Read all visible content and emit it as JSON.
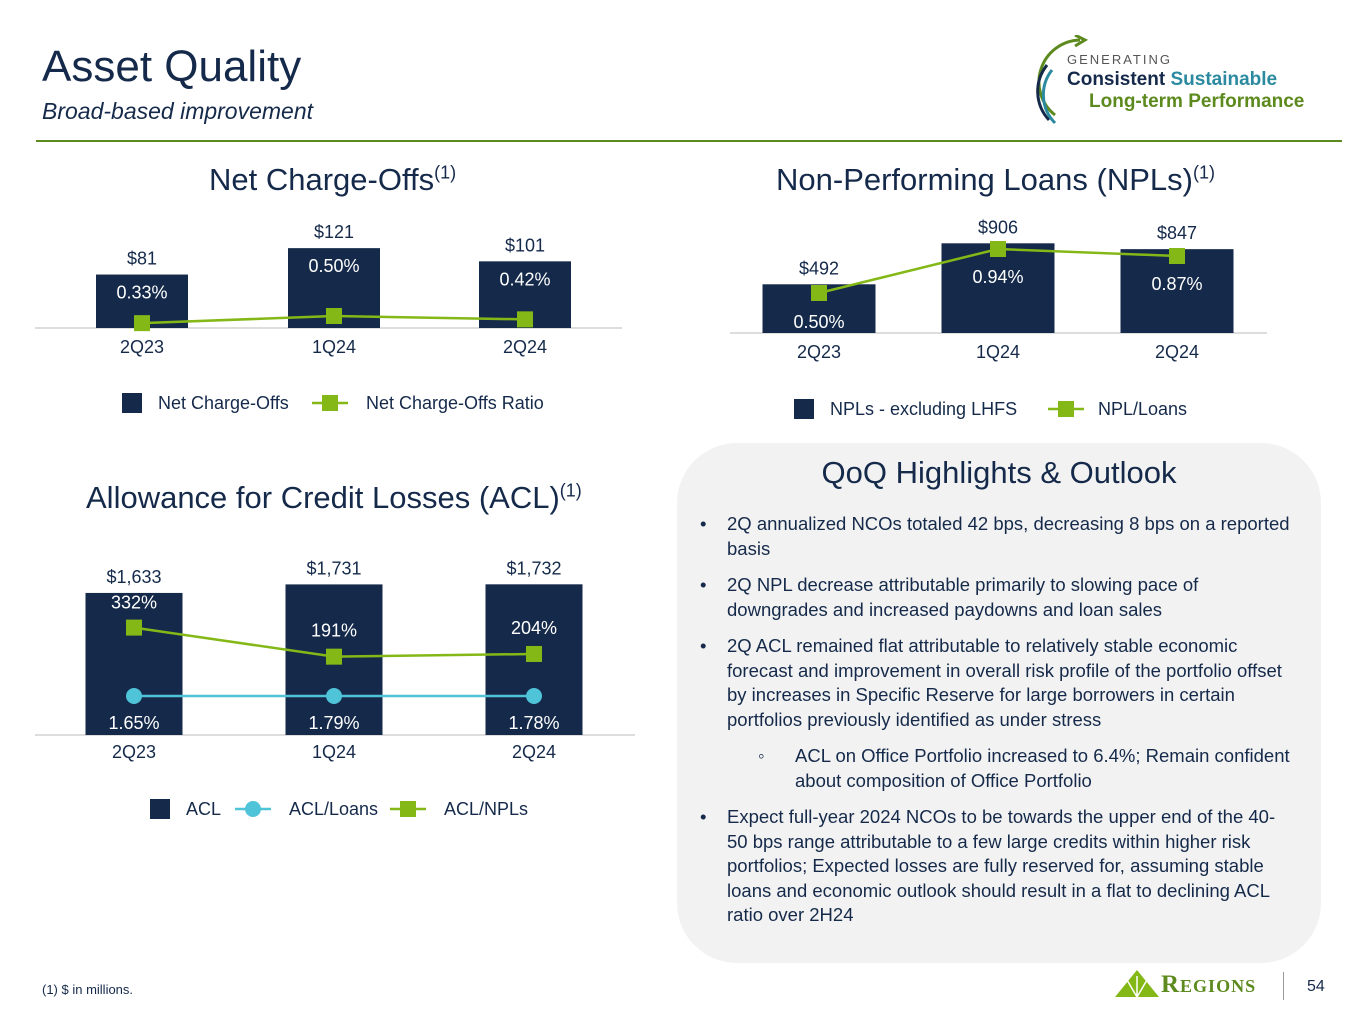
{
  "header": {
    "title": "Asset Quality",
    "subtitle": "Broad-based improvement"
  },
  "logo": {
    "line1": "GENERATING",
    "line2a": "Consistent",
    "line2b": "Sustainable",
    "line3": "Long-term Performance"
  },
  "colors": {
    "navy": "#152a4a",
    "green": "#84b817",
    "teal": "#4fc3d8",
    "rule": "#5d8a1e"
  },
  "chart_data": [
    {
      "type": "bar",
      "title": "Net Charge-Offs",
      "footnote_ref": "(1)",
      "categories": [
        "2Q23",
        "1Q24",
        "2Q24"
      ],
      "series": [
        {
          "name": "Net Charge-Offs",
          "kind": "bar",
          "values": [
            81,
            121,
            101
          ],
          "labels": [
            "$81",
            "$121",
            "$101"
          ]
        },
        {
          "name": "Net Charge-Offs Ratio",
          "kind": "line",
          "values": [
            0.33,
            0.5,
            0.42
          ],
          "labels": [
            "0.33%",
            "0.50%",
            "0.42%"
          ]
        }
      ]
    },
    {
      "type": "bar",
      "title": "Non-Performing Loans (NPLs)",
      "footnote_ref": "(1)",
      "categories": [
        "2Q23",
        "1Q24",
        "2Q24"
      ],
      "series": [
        {
          "name": "NPLs - excluding LHFS",
          "kind": "bar",
          "values": [
            492,
            906,
            847
          ],
          "labels": [
            "$492",
            "$906",
            "$847"
          ]
        },
        {
          "name": "NPL/Loans",
          "kind": "line",
          "values": [
            0.5,
            0.94,
            0.87
          ],
          "labels": [
            "0.50%",
            "0.94%",
            "0.87%"
          ]
        }
      ]
    },
    {
      "type": "bar",
      "title": "Allowance for Credit Losses (ACL)",
      "footnote_ref": "(1)",
      "categories": [
        "2Q23",
        "1Q24",
        "2Q24"
      ],
      "series": [
        {
          "name": "ACL",
          "kind": "bar",
          "values": [
            1633,
            1731,
            1732
          ],
          "labels": [
            "$1,633",
            "$1,731",
            "$1,732"
          ]
        },
        {
          "name": "ACL/Loans",
          "kind": "line",
          "values": [
            1.65,
            1.79,
            1.78
          ],
          "labels": [
            "1.65%",
            "1.79%",
            "1.78%"
          ]
        },
        {
          "name": "ACL/NPLs",
          "kind": "line",
          "values": [
            332,
            191,
            204
          ],
          "labels": [
            "332%",
            "191%",
            "204%"
          ]
        }
      ]
    }
  ],
  "highlights": {
    "title": "QoQ Highlights & Outlook",
    "items": [
      "2Q annualized NCOs totaled 42 bps, decreasing 8 bps on a reported basis",
      "2Q NPL decrease attributable primarily to slowing pace of downgrades and increased paydowns and loan sales",
      "2Q ACL remained flat attributable to relatively stable economic forecast and improvement in overall risk profile of the portfolio offset by increases in Specific Reserve for large borrowers in certain portfolios previously identified as under stress",
      "ACL on Office Portfolio increased to 6.4%; Remain confident about composition of Office Portfolio",
      "Expect full-year 2024 NCOs to be towards the upper end of the 40-50 bps range attributable to a few large credits within higher risk portfolios; Expected losses are fully reserved for, assuming stable loans and economic outlook should result in a flat to declining ACL ratio over 2H24"
    ]
  },
  "footer": {
    "footnote": "(1) $ in millions.",
    "brand": "Regions",
    "page": "54"
  }
}
